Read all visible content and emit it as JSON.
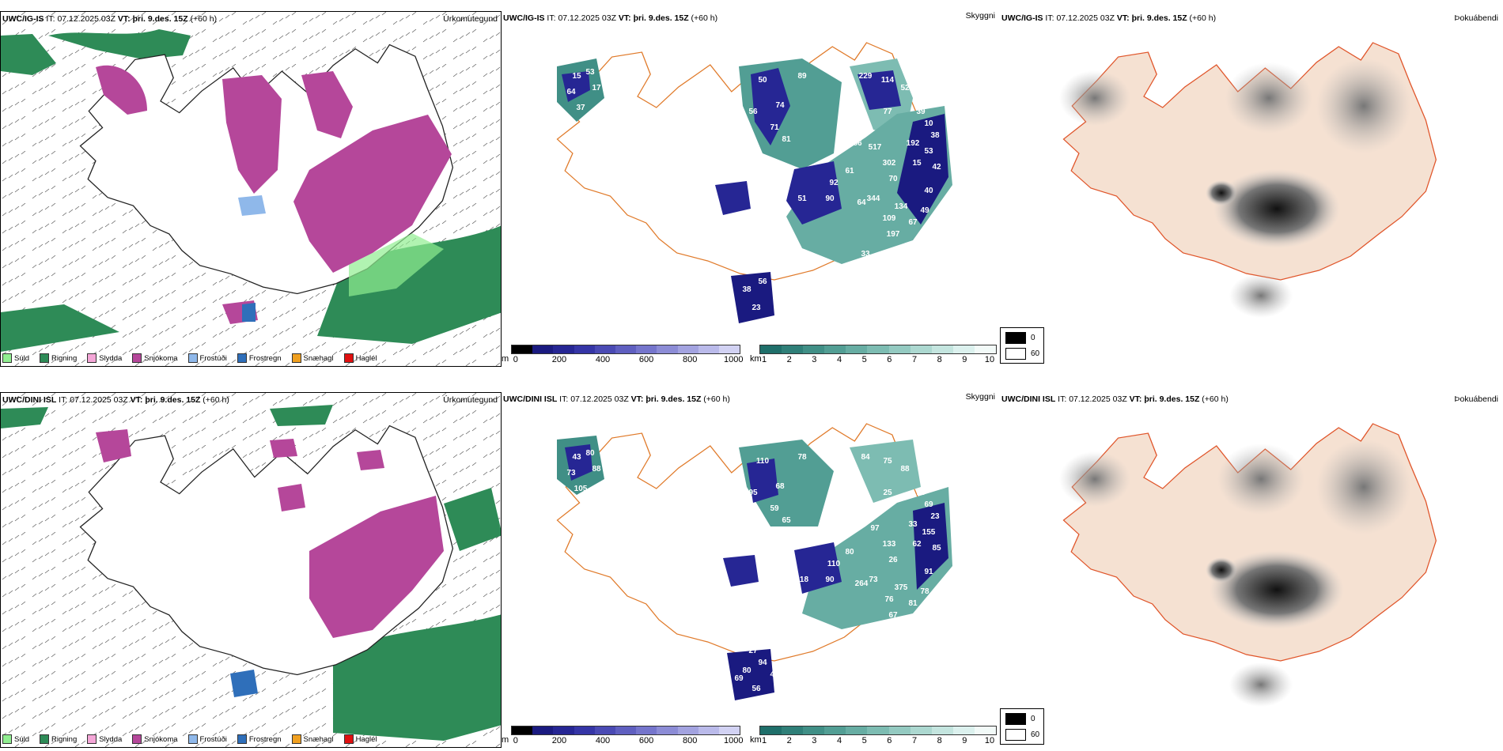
{
  "rows": [
    {
      "precip": {
        "model": "UWC/IG-IS",
        "it_label": "IT:",
        "it_value": "07.12.2025 03Z",
        "vt_label": "VT:",
        "vt_value": "þri. 9.des. 15Z",
        "lead": "(+60 h)",
        "right_label": "Úrkomutegund"
      },
      "visibility": {
        "model": "UWC/IG-IS",
        "it_label": "IT:",
        "it_value": "07.12.2025 03Z",
        "vt_label": "VT:",
        "vt_value": "þri. 9.des. 15Z",
        "lead": "(+60 h)",
        "right_label": "Skyggni",
        "values": [
          "15",
          "53",
          "64",
          "17",
          "37",
          "50",
          "56",
          "74",
          "71",
          "81",
          "89",
          "229",
          "114",
          "52",
          "77",
          "39",
          "10",
          "38",
          "86",
          "517",
          "192",
          "53",
          "302",
          "15",
          "42",
          "61",
          "92",
          "70",
          "40",
          "51",
          "90",
          "64",
          "344",
          "134",
          "49",
          "109",
          "67",
          "197",
          "33",
          "38",
          "56",
          "23"
        ]
      },
      "fog": {
        "model": "UWC/IG-IS",
        "it_label": "IT:",
        "it_value": "07.12.2025 03Z",
        "vt_label": "VT:",
        "vt_value": "þri. 9.des. 15Z",
        "lead": "(+60 h)",
        "right_label": "Þokuábendi"
      }
    },
    {
      "precip": {
        "model": "UWC/DINI ISL",
        "it_label": "IT:",
        "it_value": "07.12.2025 03Z",
        "vt_label": "VT:",
        "vt_value": "þri. 9.des. 15Z",
        "lead": "(+60 h)",
        "right_label": "Úrkomutegund"
      },
      "visibility": {
        "model": "UWC/DINI ISL",
        "it_label": "IT:",
        "it_value": "07.12.2025 03Z",
        "vt_label": "VT:",
        "vt_value": "þri. 9.des. 15Z",
        "lead": "(+60 h)",
        "right_label": "Skyggni",
        "values": [
          "43",
          "80",
          "73",
          "88",
          "105",
          "110",
          "95",
          "68",
          "59",
          "65",
          "78",
          "84",
          "75",
          "88",
          "25",
          "13",
          "69",
          "23",
          "49",
          "97",
          "33",
          "155",
          "133",
          "62",
          "85",
          "80",
          "110",
          "26",
          "91",
          "118",
          "90",
          "264",
          "73",
          "375",
          "78",
          "76",
          "81",
          "67",
          "150",
          "80",
          "94",
          "56",
          "69",
          "47",
          "145",
          "27"
        ]
      },
      "fog": {
        "model": "UWC/DINI ISL",
        "it_label": "IT:",
        "it_value": "07.12.2025 03Z",
        "vt_label": "VT:",
        "vt_value": "þri. 9.des. 15Z",
        "lead": "(+60 h)",
        "right_label": "Þokuábendi"
      }
    }
  ],
  "precip_legend": [
    {
      "label": "Súld",
      "color": "#90ee90"
    },
    {
      "label": "Rigning",
      "color": "#2e8b57"
    },
    {
      "label": "Slydda",
      "color": "#f4a6d7"
    },
    {
      "label": "Snjókoma",
      "color": "#b5479a"
    },
    {
      "label": "Frostúði",
      "color": "#8fb8ea"
    },
    {
      "label": "Frostregn",
      "color": "#2f6fba"
    },
    {
      "label": "Snæhagl",
      "color": "#f0a020"
    },
    {
      "label": "Haglél",
      "color": "#e01010"
    }
  ],
  "ceiling_scale": {
    "unit": "m",
    "ticks": [
      "0",
      "200",
      "400",
      "600",
      "800",
      "1000"
    ],
    "colors": [
      "#000000",
      "#1a1a80",
      "#262694",
      "#3535a6",
      "#4a4ab4",
      "#5f5fc0",
      "#7575cc",
      "#8c8cd6",
      "#a3a3e0",
      "#babaea",
      "#d2d2f3"
    ]
  },
  "visibility_scale": {
    "unit": "km",
    "ticks": [
      "1",
      "2",
      "3",
      "4",
      "5",
      "6",
      "7",
      "8",
      "9",
      "10"
    ],
    "colors": [
      "#1f6f6a",
      "#2f7f78",
      "#408f86",
      "#529e94",
      "#67ada3",
      "#7dbcb2",
      "#94cac1",
      "#acd8d0",
      "#c4e5df",
      "#dcf1ee",
      "#f2faf8"
    ]
  },
  "cloud_legend": {
    "values": [
      "0",
      "60"
    ],
    "colors": [
      "#000000",
      "#ffffff"
    ]
  }
}
